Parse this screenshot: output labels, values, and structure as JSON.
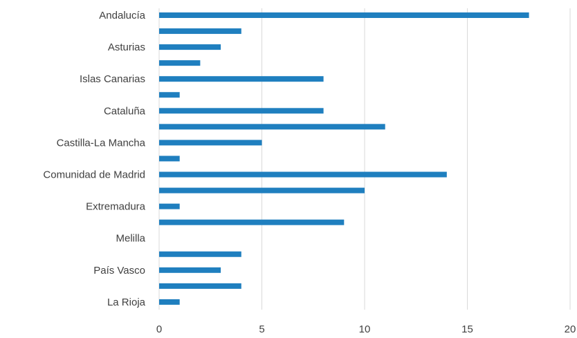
{
  "chart_data": {
    "type": "bar",
    "orientation": "horizontal",
    "title": "",
    "xlabel": "",
    "ylabel": "",
    "xlim": [
      0,
      20
    ],
    "x_ticks": [
      0,
      5,
      10,
      15,
      20
    ],
    "grid": "vertical",
    "legend": "none",
    "bar_color": "#1f7fbf",
    "grid_color": "#d9d9d9",
    "categories": [
      "Andalucía",
      "",
      "Asturias",
      "",
      "Islas Canarias",
      "",
      "Cataluña",
      "",
      "Castilla-La Mancha",
      "",
      "Comunidad de Madrid",
      "",
      "Extremadura",
      "",
      "Melilla",
      "",
      "País Vasco",
      "",
      "La Rioja"
    ],
    "values": [
      18,
      4,
      3,
      2,
      8,
      1,
      8,
      11,
      5,
      1,
      14,
      10,
      1,
      9,
      0,
      4,
      3,
      4,
      1
    ]
  }
}
